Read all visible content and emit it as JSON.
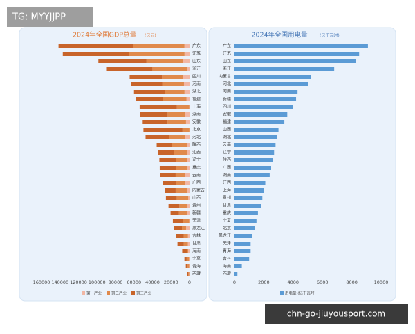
{
  "watermark": "TG: MYYJJPP",
  "footer_url": "chn-go-jiuyousport.com",
  "chart_data": [
    {
      "type": "stacked-bar-horizontal",
      "title": "2024年全国GDP总量",
      "subtitle": "(亿元)",
      "xreverse": true,
      "grid": false,
      "categories": [
        "广东",
        "江苏",
        "山东",
        "浙江",
        "四川",
        "河南",
        "湖北",
        "福建",
        "上海",
        "湖南",
        "安徽",
        "北京",
        "河北",
        "陕西",
        "江西",
        "辽宁",
        "重庆",
        "云南",
        "广西",
        "内蒙古",
        "山西",
        "贵州",
        "新疆",
        "天津",
        "黑龙江",
        "吉林",
        "甘肃",
        "海南",
        "宁夏",
        "青海",
        "西藏"
      ],
      "series": [
        {
          "name": "第一产业",
          "color": "#f2b7a4",
          "values": [
            5500,
            5400,
            7000,
            2600,
            6700,
            6000,
            5400,
            3300,
            200,
            4700,
            3800,
            100,
            4900,
            2800,
            2700,
            2900,
            2200,
            4500,
            4700,
            3000,
            1400,
            3000,
            3000,
            300,
            3700,
            1700,
            1800,
            1500,
            500,
            400,
            300
          ]
        },
        {
          "name": "第二产业",
          "color": "#e08a4c",
          "values": [
            55600,
            60000,
            39500,
            37500,
            23000,
            23500,
            21500,
            25500,
            13500,
            19000,
            20000,
            7500,
            17500,
            16500,
            14000,
            12000,
            12500,
            10500,
            9500,
            12000,
            12500,
            8000,
            8500,
            6500,
            4500,
            4600,
            4500,
            1500,
            2600,
            1700,
            1000
          ]
        },
        {
          "name": "第三产业",
          "color": "#c8642a",
          "values": [
            80500,
            71600,
            52000,
            50000,
            35000,
            34000,
            33100,
            29000,
            40200,
            29500,
            26800,
            42200,
            25100,
            16200,
            17500,
            17700,
            17500,
            16500,
            14400,
            11300,
            11600,
            11700,
            9000,
            11200,
            8300,
            8100,
            6700,
            4900,
            2400,
            1900,
            1500
          ]
        }
      ],
      "xlim": [
        0,
        160000
      ],
      "xticks": [
        160000,
        140000,
        120000,
        100000,
        80000,
        60000,
        40000,
        20000,
        0
      ]
    },
    {
      "type": "bar-horizontal",
      "title": "2024年全国用电量",
      "subtitle": "(亿千瓦时)",
      "xreverse": false,
      "grid": false,
      "categories": [
        "广东",
        "江苏",
        "山东",
        "浙江",
        "内蒙古",
        "河北",
        "河南",
        "新疆",
        "四川",
        "安徽",
        "福建",
        "山西",
        "湖北",
        "云南",
        "辽宁",
        "陕西",
        "广西",
        "湖南",
        "江西",
        "上海",
        "贵州",
        "甘肃",
        "重庆",
        "宁夏",
        "北京",
        "黑龙江",
        "天津",
        "青海",
        "吉林",
        "海南",
        "西藏"
      ],
      "series": [
        {
          "name": "用电量 (亿千瓦时)",
          "color": "#5b9bd5",
          "values": [
            9100,
            8500,
            8300,
            6800,
            5200,
            5000,
            4300,
            4200,
            4000,
            3600,
            3400,
            3000,
            2900,
            2800,
            2700,
            2600,
            2500,
            2400,
            2100,
            2000,
            1900,
            1800,
            1600,
            1500,
            1400,
            1200,
            1100,
            1100,
            1000,
            500,
            200
          ]
        }
      ],
      "xlim": [
        0,
        10000
      ],
      "xticks": [
        0,
        2000,
        4000,
        6000,
        8000,
        10000
      ]
    }
  ]
}
